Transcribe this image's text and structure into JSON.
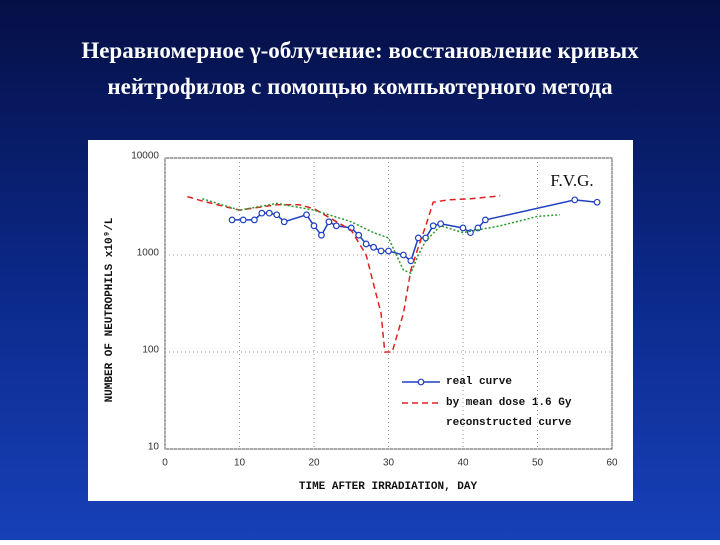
{
  "chart_data": {
    "type": "line",
    "title": [
      "Неравномерное γ-облучение: восстановление кривых",
      "нейтрофилов с помощью компьютерного метода"
    ],
    "x_label": "TIME AFTER IRRADIATION, DAY",
    "y_label": "NUMBER OF NEUTROPHILS x10⁹/L",
    "annotation": "F.V.G.",
    "xlim": [
      0,
      60
    ],
    "xticks": [
      0,
      10,
      20,
      30,
      40,
      50,
      60
    ],
    "ylim": [
      10,
      10000
    ],
    "yticks": [
      10,
      100,
      1000,
      10000
    ],
    "y_log": true,
    "grid": true,
    "series": [
      {
        "name": "real curve",
        "color": "#1f3fbf",
        "style": "solid",
        "marker": "circle",
        "x": [
          9,
          10.5,
          12,
          13,
          14,
          15,
          16,
          19,
          20,
          21,
          22,
          23,
          25,
          26,
          27,
          28,
          29,
          30,
          32,
          33,
          34,
          35,
          36,
          37,
          40,
          41,
          42,
          43,
          55,
          58
        ],
        "values": [
          2300,
          2300,
          2300,
          2700,
          2700,
          2600,
          2200,
          2600,
          2000,
          1600,
          2200,
          2000,
          1900,
          1600,
          1300,
          1200,
          1100,
          1100,
          1000,
          870,
          1500,
          1500,
          2000,
          2100,
          1900,
          1700,
          1900,
          2300,
          3700,
          3500
        ]
      },
      {
        "name": "by mean dose 1.6 Gy reconstructed curve",
        "color": "#e02020",
        "style": "dashed",
        "x": [
          3,
          5,
          10,
          15,
          18,
          20,
          25,
          27,
          28,
          29,
          29.5,
          30.5,
          32,
          33,
          34,
          35,
          36,
          38,
          41,
          44,
          45
        ],
        "values": [
          4000,
          3600,
          2900,
          3300,
          3300,
          3000,
          1800,
          1000,
          500,
          250,
          100,
          100,
          250,
          700,
          1200,
          2000,
          3500,
          3700,
          3800,
          4000,
          4100
        ]
      },
      {
        "color": "#2a9a2a",
        "style": "dotted",
        "x": [
          5,
          10,
          15,
          20,
          25,
          28,
          30,
          32,
          33,
          34,
          35,
          37,
          40,
          45,
          50,
          53
        ],
        "values": [
          3800,
          2900,
          3400,
          2900,
          2200,
          1700,
          1500,
          700,
          650,
          1000,
          1400,
          2000,
          1700,
          2000,
          2500,
          2600
        ]
      }
    ]
  }
}
